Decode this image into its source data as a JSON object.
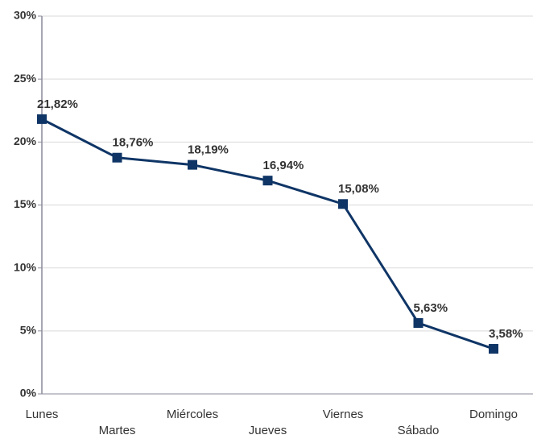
{
  "chart_data": {
    "type": "line",
    "categories": [
      "Lunes",
      "Martes",
      "Miércoles",
      "Jueves",
      "Viernes",
      "Sábado",
      "Domingo"
    ],
    "series": [
      {
        "color": "#0f3566",
        "values": [
          21.82,
          18.76,
          18.19,
          16.94,
          15.08,
          5.63,
          3.58
        ],
        "value_labels": [
          "21,82%",
          "18,76%",
          "18,19%",
          "16,94%",
          "15,08%",
          "5,63%",
          "3,58%"
        ]
      }
    ],
    "ylim": [
      0,
      30
    ],
    "yticks": [
      {
        "value": 0,
        "label": "0%"
      },
      {
        "value": 5,
        "label": "5%"
      },
      {
        "value": 10,
        "label": "10%"
      },
      {
        "value": 15,
        "label": "15%"
      },
      {
        "value": 20,
        "label": "20%"
      },
      {
        "value": 25,
        "label": "25%"
      },
      {
        "value": 30,
        "label": "30%"
      }
    ],
    "grid": true
  }
}
